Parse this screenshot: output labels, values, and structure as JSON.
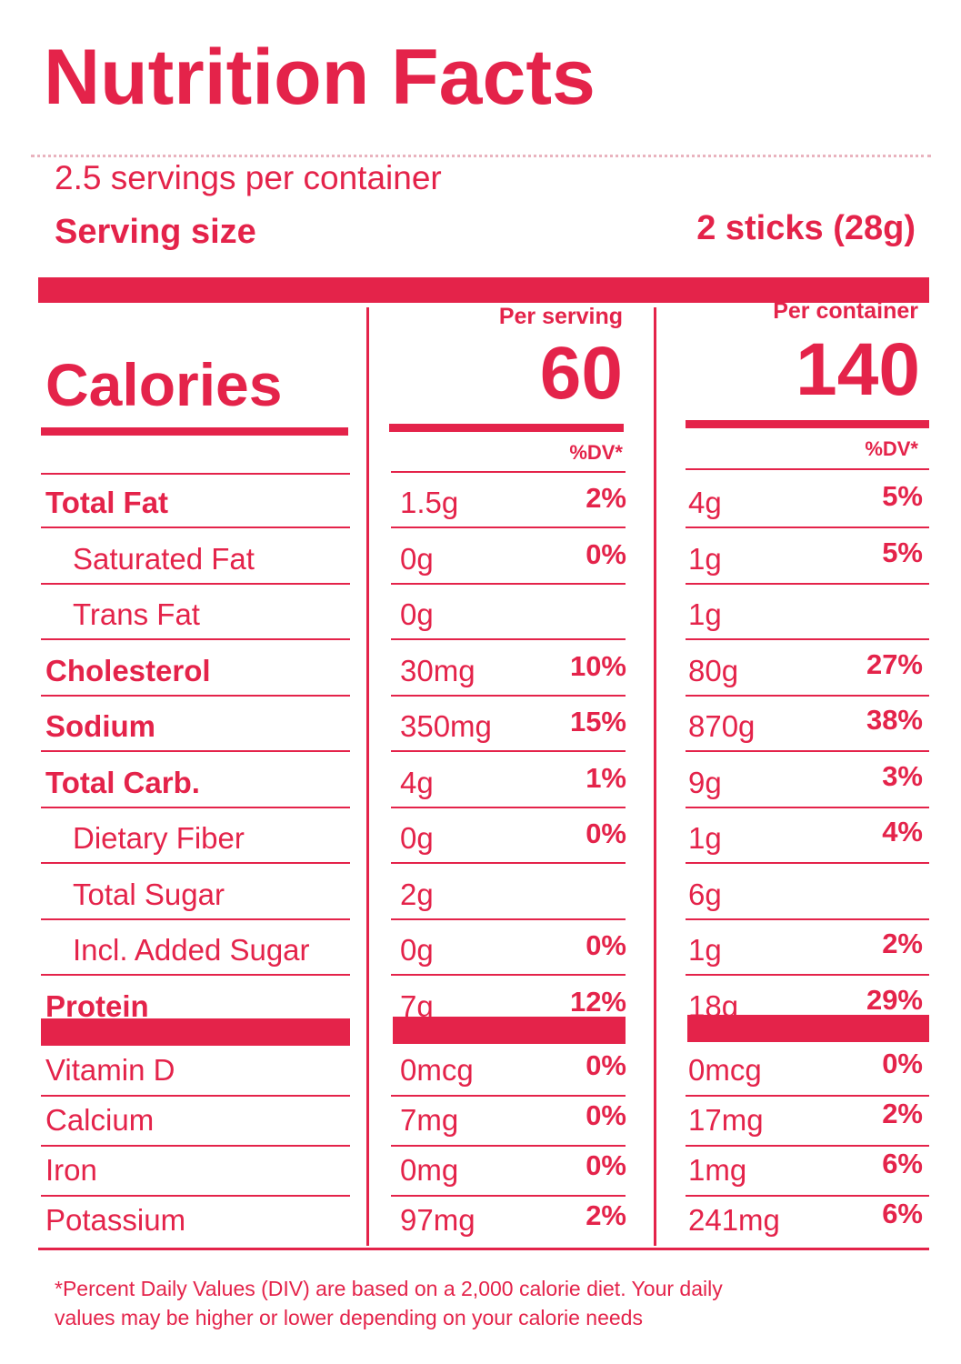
{
  "title": "Nutrition Facts",
  "servings": "2.5 servings per container",
  "serving_size": {
    "label": "Serving size",
    "value": "2 sticks (28g)"
  },
  "calories": {
    "label": "Calories",
    "per_serving_header": "Per serving",
    "per_serving": 60,
    "per_container_header": "Per container",
    "per_container": 140
  },
  "dv_header": "%DV*",
  "nutrients": [
    {
      "name": "Total Fat",
      "serving": "1.5g",
      "serving_dv": "2%",
      "container": "4g",
      "container_dv": "5%"
    },
    {
      "name": "Saturated Fat",
      "serving": "0g",
      "serving_dv": "0%",
      "container": "1g",
      "container_dv": "5%"
    },
    {
      "name": "Trans Fat",
      "serving": "0g",
      "container": "1g"
    },
    {
      "name": "Cholesterol",
      "serving": "30mg",
      "serving_dv": "10%",
      "container": "80g",
      "container_dv": "27%"
    },
    {
      "name": "Sodium",
      "serving": "350mg",
      "serving_dv": "15%",
      "container": "870g",
      "container_dv": "38%"
    },
    {
      "name": "Total Carb.",
      "serving": "4g",
      "serving_dv": "1%",
      "container": "9g",
      "container_dv": "3%"
    },
    {
      "name": "Dietary Fiber",
      "serving": "0g",
      "serving_dv": "0%",
      "container": "1g",
      "container_dv": "4%"
    },
    {
      "name": "Total Sugar",
      "serving": "2g",
      "container": "6g"
    },
    {
      "name": "Incl. Added Sugar",
      "serving": "0g",
      "serving_dv": "0%",
      "container": "1g",
      "container_dv": "2%"
    },
    {
      "name": "Protein",
      "serving": "7g",
      "serving_dv": "12%",
      "container": "18g",
      "container_dv": "29%"
    }
  ],
  "vitamins": [
    {
      "name": "Vitamin D",
      "serving": "0mcg",
      "serving_dv": "0%",
      "container": "0mcg",
      "container_dv": "0%"
    },
    {
      "name": "Calcium",
      "serving": "7mg",
      "serving_dv": "0%",
      "container": "17mg",
      "container_dv": "2%"
    },
    {
      "name": "Iron",
      "serving": "0mg",
      "serving_dv": "0%",
      "container": "1mg",
      "container_dv": "6%"
    },
    {
      "name": "Potassium",
      "serving": "97mg",
      "serving_dv": "2%",
      "container": "241mg",
      "container_dv": "6%"
    }
  ],
  "footnote": [
    "*Percent Daily Values (DIV) are based on a 2,000 calorie diet. Your daily",
    "values may be higher or lower depending on your calorie needs"
  ]
}
